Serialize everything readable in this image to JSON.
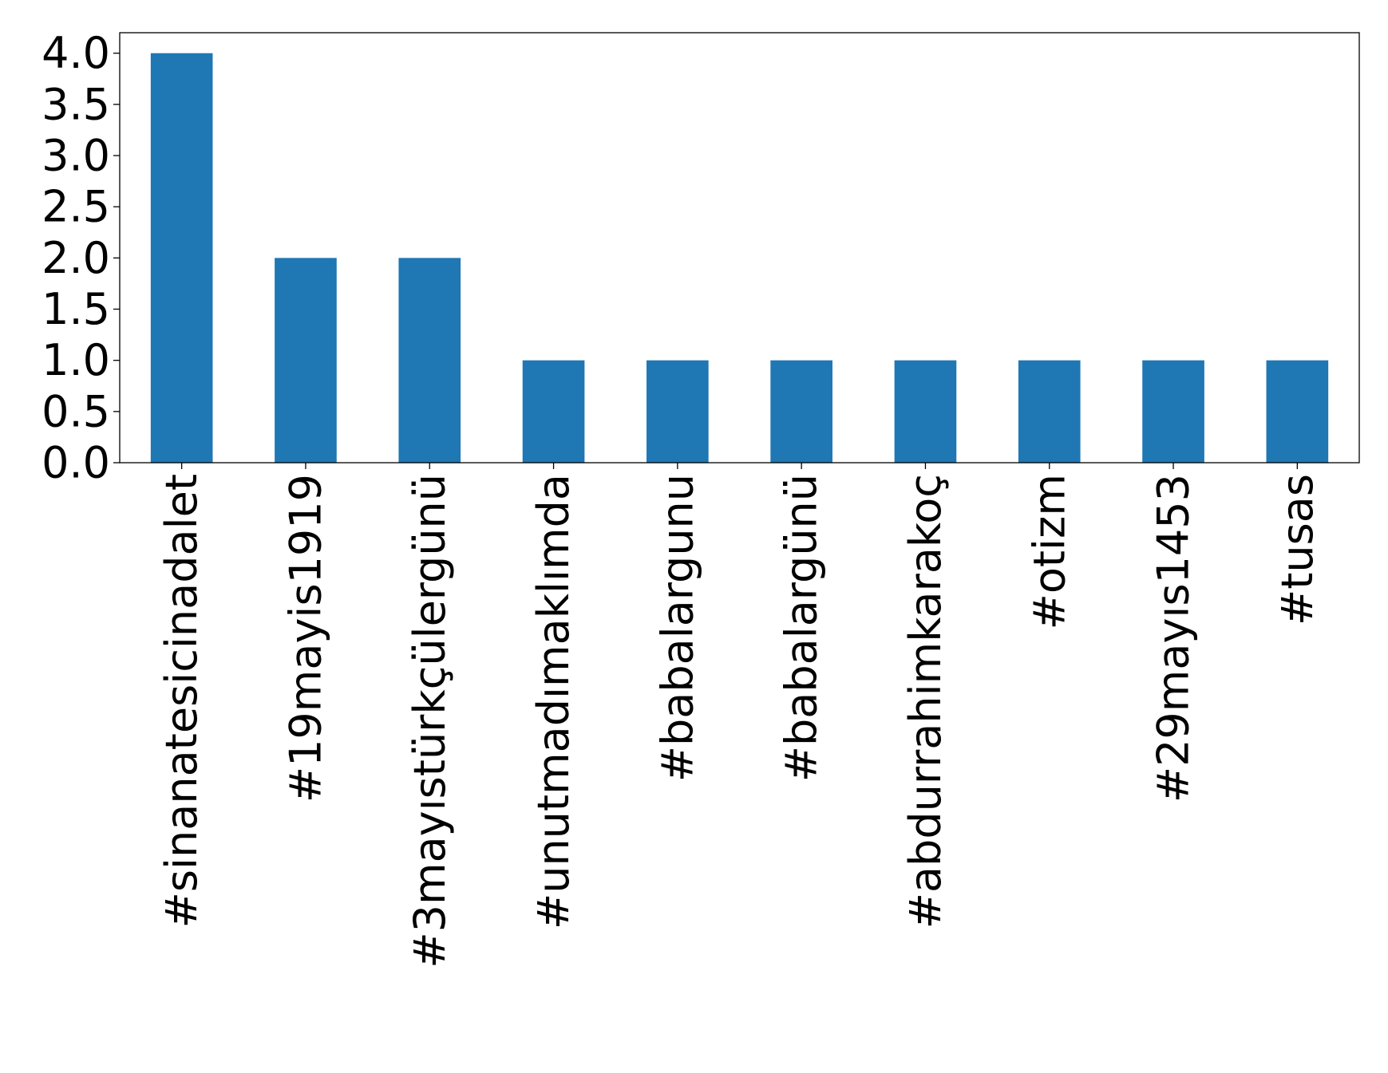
{
  "chart_data": {
    "type": "bar",
    "title": "",
    "xlabel": "",
    "ylabel": "",
    "categories": [
      "#sinanatesicinadalet",
      "#19mayis1919",
      "#3mayıstürkçülergünü",
      "#unutmadımaklımda",
      "#babalargunu",
      "#babalargünü",
      "#abdurrahimkarakoç",
      "#otizm",
      "#29mayıs1453",
      "#tusas"
    ],
    "values": [
      4,
      2,
      2,
      1,
      1,
      1,
      1,
      1,
      1,
      1
    ],
    "ylim": [
      0,
      4.2
    ],
    "yticks": [
      "0.0",
      "0.5",
      "1.0",
      "1.5",
      "2.0",
      "2.5",
      "3.0",
      "3.5",
      "4.0"
    ],
    "grid": false,
    "legend": "none",
    "bar_color": "#1f77b4"
  }
}
